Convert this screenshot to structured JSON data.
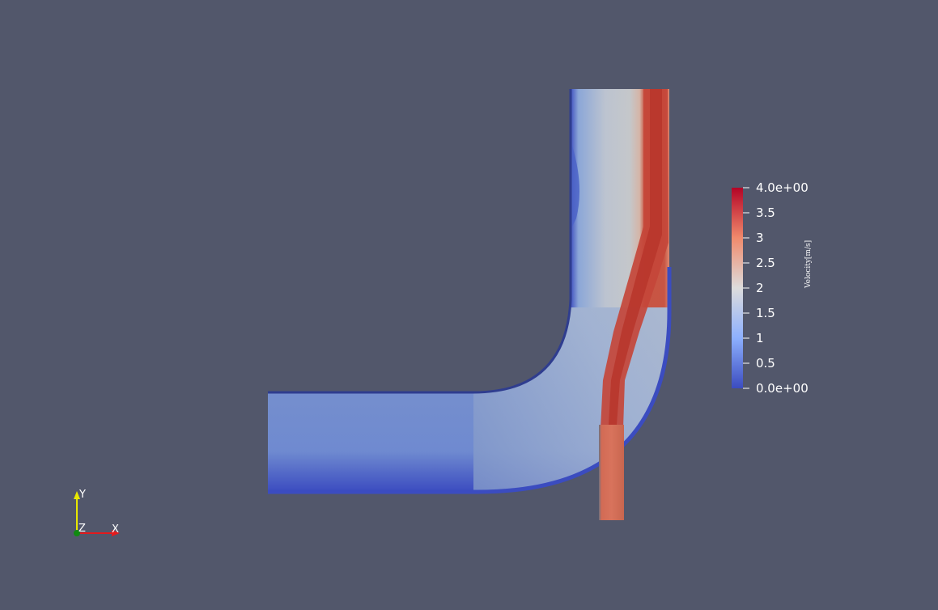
{
  "colorbar": {
    "title": "Velocity[m/s]",
    "ticks": [
      "4.0e+00",
      "3.5",
      "3",
      "2.5",
      "2",
      "1.5",
      "1",
      "0.5",
      "0.0e+00"
    ],
    "range": [
      0,
      4
    ],
    "colormap": [
      "#b40426",
      "#f08a6c",
      "#dddcdc",
      "#8db0fe",
      "#3b4cc0"
    ]
  },
  "orientation_axes": {
    "x_label": "X",
    "y_label": "Y",
    "z_label": "Z",
    "x_color": "#e31a1c",
    "y_color": "#e8e800",
    "z_color": "#108a10"
  },
  "background_color": "#52576b"
}
